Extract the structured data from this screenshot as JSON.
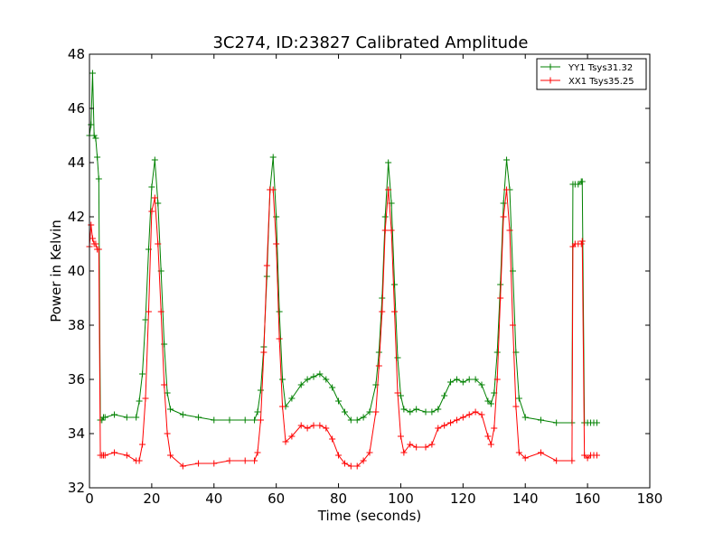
{
  "chart_data": {
    "type": "line",
    "title": "3C274, ID:23827 Calibrated Amplitude",
    "xlabel": "Time (seconds)",
    "ylabel": "Power in Kelvin",
    "xlim": [
      0,
      180
    ],
    "ylim": [
      32,
      48
    ],
    "xticks": [
      0,
      20,
      40,
      60,
      80,
      100,
      120,
      140,
      160,
      180
    ],
    "yticks": [
      32,
      34,
      36,
      38,
      40,
      42,
      44,
      46,
      48
    ],
    "grid": false,
    "legend_position": "top-right",
    "marker": "plus",
    "series": [
      {
        "name": "YY1 Tsys31.32",
        "color": "#008000",
        "x": [
          0,
          0.5,
          1,
          1.5,
          2,
          2.5,
          3,
          3.5,
          4,
          4.5,
          5,
          8,
          12,
          15,
          16,
          17,
          18,
          19,
          20,
          21,
          22,
          23,
          24,
          25,
          26,
          30,
          35,
          40,
          45,
          50,
          53,
          54,
          55,
          56,
          57,
          58,
          59,
          60,
          61,
          62,
          63,
          65,
          68,
          70,
          72,
          74,
          76,
          78,
          80,
          82,
          84,
          86,
          88,
          90,
          92,
          93,
          94,
          95,
          96,
          97,
          98,
          99,
          100,
          101,
          103,
          105,
          108,
          110,
          112,
          114,
          116,
          118,
          120,
          122,
          124,
          126,
          128,
          129,
          130,
          131,
          132,
          133,
          134,
          135,
          136,
          137,
          138,
          140,
          145,
          150,
          155,
          155.3,
          156,
          157,
          158,
          158.3,
          159,
          160,
          161,
          162,
          163
        ],
        "y": [
          45.0,
          45.4,
          47.3,
          45.0,
          44.9,
          44.2,
          43.4,
          34.5,
          34.5,
          34.6,
          34.6,
          34.7,
          34.6,
          34.6,
          35.2,
          36.2,
          38.2,
          40.8,
          43.1,
          44.1,
          42.5,
          40.0,
          37.3,
          35.5,
          34.9,
          34.7,
          34.6,
          34.5,
          34.5,
          34.5,
          34.5,
          34.8,
          35.6,
          37.2,
          39.8,
          43.0,
          44.2,
          42.0,
          38.5,
          36.0,
          35.0,
          35.3,
          35.8,
          36.0,
          36.1,
          36.2,
          36.0,
          35.7,
          35.2,
          34.8,
          34.5,
          34.5,
          34.6,
          34.8,
          35.8,
          37.0,
          39.0,
          42.0,
          44.0,
          42.5,
          39.5,
          36.8,
          35.4,
          34.9,
          34.8,
          34.9,
          34.8,
          34.8,
          34.9,
          35.4,
          35.9,
          36.0,
          35.9,
          36.0,
          36.0,
          35.8,
          35.2,
          35.1,
          35.5,
          37.0,
          39.5,
          42.5,
          44.1,
          43.0,
          40.0,
          37.0,
          35.3,
          34.6,
          34.5,
          34.4,
          34.4,
          43.2,
          43.2,
          43.2,
          43.3,
          43.3,
          34.4,
          34.4,
          34.4,
          34.4,
          34.4
        ]
      },
      {
        "name": "XX1 Tsys35.25",
        "color": "#ff0000",
        "x": [
          0,
          0.5,
          1,
          1.5,
          2,
          2.5,
          3,
          3.5,
          4,
          4.5,
          5,
          8,
          12,
          15,
          16,
          17,
          18,
          19,
          20,
          21,
          22,
          23,
          24,
          25,
          26,
          30,
          35,
          40,
          45,
          50,
          53,
          54,
          55,
          56,
          57,
          58,
          59,
          60,
          61,
          62,
          63,
          65,
          68,
          70,
          72,
          74,
          76,
          78,
          80,
          82,
          84,
          86,
          88,
          90,
          92,
          93,
          94,
          95,
          96,
          97,
          98,
          99,
          100,
          101,
          103,
          105,
          108,
          110,
          112,
          114,
          116,
          118,
          120,
          122,
          124,
          126,
          128,
          129,
          130,
          131,
          132,
          133,
          134,
          135,
          136,
          137,
          138,
          140,
          145,
          150,
          155,
          155.3,
          156,
          157,
          158,
          158.3,
          159,
          160,
          161,
          162,
          163
        ],
        "y": [
          40.9,
          41.7,
          41.2,
          41.0,
          41.0,
          40.8,
          40.8,
          33.2,
          33.2,
          33.2,
          33.2,
          33.3,
          33.2,
          33.0,
          33.0,
          33.6,
          35.3,
          38.5,
          42.2,
          42.7,
          41.0,
          38.5,
          35.8,
          34.0,
          33.2,
          32.8,
          32.9,
          32.9,
          33.0,
          33.0,
          33.0,
          33.3,
          34.5,
          37.0,
          40.2,
          43.0,
          43.0,
          41.0,
          37.5,
          35.0,
          33.7,
          33.9,
          34.3,
          34.2,
          34.3,
          34.3,
          34.2,
          33.8,
          33.2,
          32.9,
          32.8,
          32.8,
          33.0,
          33.3,
          34.8,
          36.5,
          38.5,
          41.5,
          43.0,
          41.5,
          38.5,
          35.5,
          33.9,
          33.3,
          33.6,
          33.5,
          33.5,
          33.6,
          34.2,
          34.3,
          34.4,
          34.5,
          34.6,
          34.7,
          34.8,
          34.7,
          33.9,
          33.6,
          34.2,
          36.0,
          39.0,
          42.0,
          43.0,
          41.5,
          38.0,
          35.0,
          33.3,
          33.1,
          33.3,
          33.0,
          33.0,
          40.9,
          41.0,
          41.0,
          41.0,
          41.1,
          33.2,
          33.1,
          33.2,
          33.2,
          33.2
        ]
      }
    ]
  }
}
